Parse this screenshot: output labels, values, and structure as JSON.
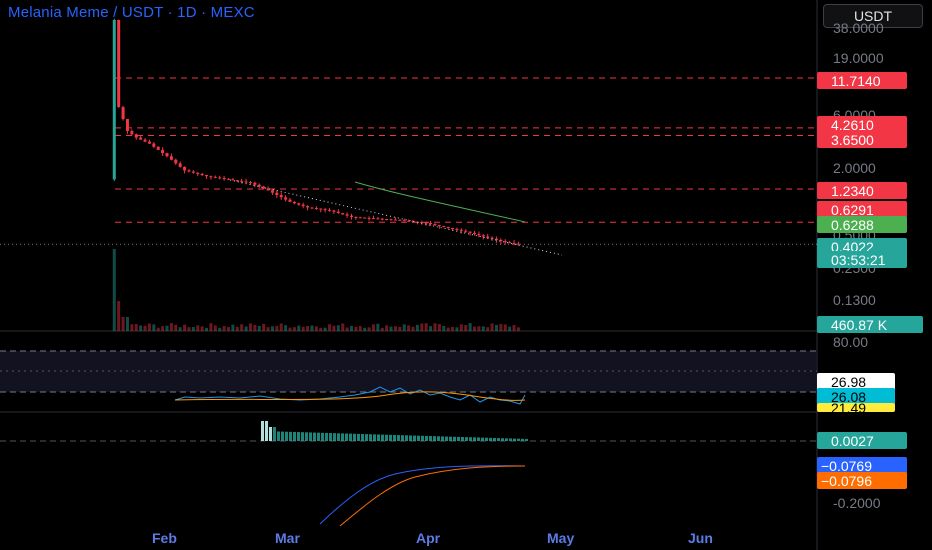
{
  "header": {
    "title": "Melania Meme / USDT · 1D · MEXC",
    "currency_button": "USDT"
  },
  "price_axis": {
    "tick_labels": [
      "38.0000",
      "19.0000",
      "6.0000",
      "2.0000",
      "0.5000",
      "0.2500",
      "0.1300"
    ],
    "tags": [
      {
        "label": "11.7140",
        "color": "#f23645"
      },
      {
        "label": "4.2610",
        "color": "#f23645"
      },
      {
        "label": "3.6500",
        "color": "#f23645"
      },
      {
        "label": "1.2340",
        "color": "#f23645"
      },
      {
        "label": "0.6291",
        "color": "#f23645"
      },
      {
        "label": "0.6288",
        "color": "#4caf50"
      },
      {
        "label": "0.4022",
        "color": "#26a69a"
      },
      {
        "label": "03:53:21",
        "color": "#26a69a"
      }
    ]
  },
  "volume_tag": {
    "label": "460.87 K",
    "color": "#26a69a"
  },
  "rsi_axis": {
    "tick_labels": [
      "80.00"
    ],
    "tags": [
      {
        "label": "26.98",
        "color": "#ffffff",
        "text": "#000000"
      },
      {
        "label": "26.08",
        "color": "#00bcd4",
        "text": "#000000"
      },
      {
        "label": "21.49",
        "color": "#ffeb3b",
        "text": "#000000"
      }
    ]
  },
  "macd_axis": {
    "tick_labels": [
      "-0.2000"
    ],
    "tags": [
      {
        "label": "0.0027",
        "color": "#26a69a",
        "text": "#ffffff"
      },
      {
        "label": "−0.0769",
        "color": "#2962ff",
        "text": "#ffffff"
      },
      {
        "label": "−0.0796",
        "color": "#ff6d00",
        "text": "#ffffff"
      }
    ]
  },
  "time_axis": {
    "months": [
      "Feb",
      "Mar",
      "Apr",
      "May",
      "Jun"
    ]
  },
  "chart_data": {
    "type": "line",
    "title": "Melania Meme / USDT · 1D · MEXC",
    "y_scale": "log",
    "ylim": [
      0.1,
      40
    ],
    "x": [
      "2025-01-20",
      "2025-01-21",
      "2025-01-23",
      "2025-01-25",
      "2025-01-28",
      "2025-02-01",
      "2025-02-05",
      "2025-02-10",
      "2025-02-15",
      "2025-02-20",
      "2025-02-24",
      "2025-03-01",
      "2025-03-05",
      "2025-03-10",
      "2025-03-15",
      "2025-03-20",
      "2025-03-25",
      "2025-04-01",
      "2025-04-05",
      "2025-04-10",
      "2025-04-15",
      "2025-04-19",
      "2025-04-22"
    ],
    "series": [
      {
        "values": [
          38,
          6.5,
          4.0,
          3.5,
          3.1,
          2.4,
          1.8,
          1.6,
          1.5,
          1.4,
          1.2,
          0.95,
          0.85,
          0.8,
          0.7,
          0.68,
          0.66,
          0.62,
          0.57,
          0.52,
          0.46,
          0.42,
          0.4022
        ]
      }
    ],
    "horizontal_levels": [
      11.714,
      4.261,
      3.65,
      1.234,
      0.6291,
      0.4022
    ],
    "moving_average": {
      "x": [
        "2025-03-20",
        "2025-04-22"
      ],
      "values": [
        1.5,
        0.6288
      ]
    },
    "rsi_levels": [
      80,
      50,
      20
    ],
    "rsi_values": [
      26.98,
      26.08,
      21.49
    ],
    "macd_values": [
      0.0027,
      -0.0769,
      -0.0796
    ],
    "volume_last": "460.87 K"
  }
}
